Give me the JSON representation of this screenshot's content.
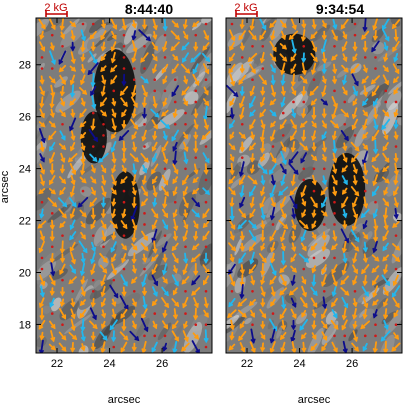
{
  "panels": [
    {
      "time": "8:44:40",
      "scale_label": "2 kG",
      "field_seed": 7,
      "dark_blobs": [
        [
          24.6,
          22.6,
          0.55,
          1.3
        ],
        [
          24.2,
          27.0,
          0.8,
          1.6
        ],
        [
          23.4,
          25.2,
          0.5,
          1.0
        ]
      ]
    },
    {
      "time": "9:34:54",
      "scale_label": "2 kG",
      "field_seed": 19,
      "dark_blobs": [
        [
          25.8,
          23.2,
          0.7,
          1.4
        ],
        [
          23.8,
          28.4,
          0.8,
          0.8
        ],
        [
          24.4,
          22.6,
          0.6,
          1.0
        ]
      ]
    }
  ],
  "axes": {
    "x_label": "arcsec",
    "y_label": "arcsec",
    "x_ticks": [
      22,
      24,
      26
    ],
    "y_ticks": [
      18,
      20,
      22,
      24,
      26,
      28
    ],
    "x_range": [
      21.2,
      27.9
    ],
    "y_range": [
      16.9,
      29.8
    ]
  },
  "colors": {
    "strong_positive": "#ff9c10",
    "cyan": "#22b7ee",
    "navy": "#0c0c8c",
    "weak": "#d01818",
    "scale_bar": "#c00000"
  }
}
